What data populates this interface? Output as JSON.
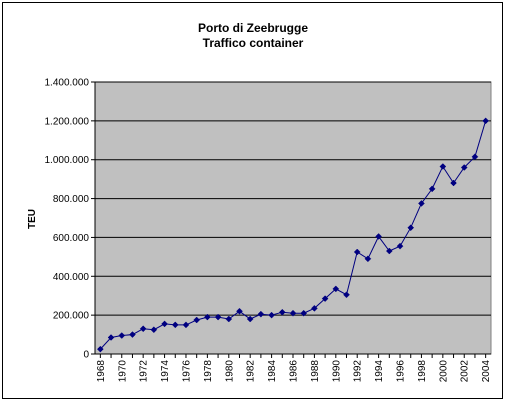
{
  "chart_data": {
    "type": "line",
    "title": "Porto di Zeebrugge",
    "subtitle": "Traffico container",
    "ylabel": "TEU",
    "xlabel": "",
    "ylim": [
      0,
      1400000
    ],
    "y_ticks": [
      0,
      200000,
      400000,
      600000,
      800000,
      1000000,
      1200000,
      1400000
    ],
    "y_tick_labels": [
      "0",
      "200.000",
      "400.000",
      "600.000",
      "800.000",
      "1.000.000",
      "1.200.000",
      "1.400.000"
    ],
    "x_tick_labels": [
      "1968",
      "1970",
      "1972",
      "1974",
      "1976",
      "1978",
      "1980",
      "1982",
      "1984",
      "1986",
      "1988",
      "1990",
      "1992",
      "1994",
      "1996",
      "1998",
      "2000",
      "2002",
      "2004"
    ],
    "grid": true,
    "legend": "none",
    "colors": {
      "plot_bg": "#c0c0c0",
      "series": "#000080",
      "grid": "#000000"
    },
    "series": [
      {
        "x": [
          1968,
          1969,
          1970,
          1971,
          1972,
          1973,
          1974,
          1975,
          1976,
          1977,
          1978,
          1979,
          1980,
          1981,
          1982,
          1983,
          1984,
          1985,
          1986,
          1987,
          1988,
          1989,
          1990,
          1991,
          1992,
          1993,
          1994,
          1995,
          1996,
          1997,
          1998,
          1999,
          2000,
          2001,
          2002,
          2003,
          2004
        ],
        "values": [
          25000,
          85000,
          95000,
          100000,
          130000,
          125000,
          155000,
          150000,
          150000,
          175000,
          190000,
          190000,
          180000,
          220000,
          180000,
          205000,
          200000,
          215000,
          210000,
          210000,
          235000,
          285000,
          335000,
          305000,
          525000,
          490000,
          605000,
          530000,
          555000,
          650000,
          775000,
          850000,
          965000,
          880000,
          960000,
          1015000,
          1200000
        ]
      }
    ]
  }
}
